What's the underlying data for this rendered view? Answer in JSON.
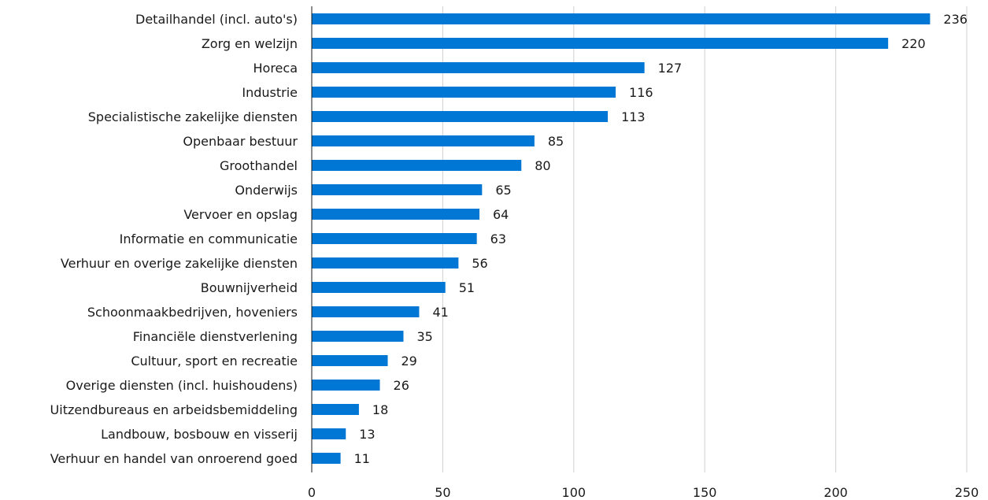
{
  "chart_data": {
    "type": "bar",
    "orientation": "horizontal",
    "title": "",
    "xlabel": "",
    "ylabel": "",
    "categories": [
      "Detailhandel (incl. auto's)",
      "Zorg en welzijn",
      "Horeca",
      "Industrie",
      "Specialistische zakelijke diensten",
      "Openbaar bestuur",
      "Groothandel",
      "Onderwijs",
      "Vervoer en opslag",
      "Informatie en communicatie",
      "Verhuur en overige zakelijke diensten",
      "Bouwnijverheid",
      "Schoonmaakbedrijven, hoveniers",
      "Financiële dienstverlening",
      "Cultuur, sport en recreatie",
      "Overige diensten (incl. huishoudens)",
      "Uitzendbureaus en arbeidsbemiddeling",
      "Landbouw, bosbouw en visserij",
      "Verhuur en handel van onroerend goed"
    ],
    "values": [
      236,
      220,
      127,
      116,
      113,
      85,
      80,
      65,
      64,
      63,
      56,
      51,
      41,
      35,
      29,
      26,
      18,
      13,
      11
    ],
    "xlim": [
      0,
      250
    ],
    "xticks": [
      0,
      50,
      100,
      150,
      200,
      250
    ],
    "grid": true,
    "legend": "none",
    "bar_color": "#0077d4"
  }
}
